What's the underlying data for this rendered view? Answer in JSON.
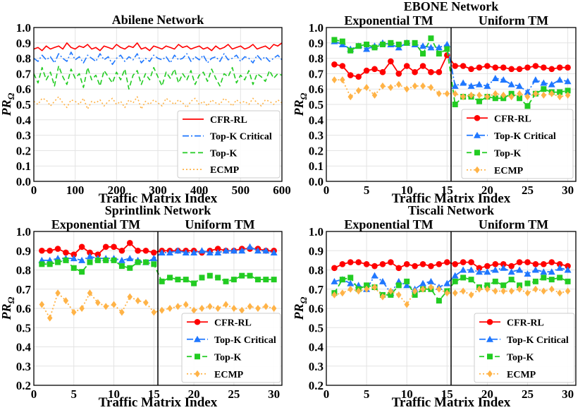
{
  "chart_data": [
    {
      "id": "abilene",
      "type": "line",
      "title": "Abilene Network",
      "supertitle": "",
      "regime_labels": [],
      "xlabel": "Traffic Matrix Index",
      "ylabel": "PR",
      "ylabel_sub": "Ω",
      "xlim": [
        0,
        600
      ],
      "ylim": [
        0.0,
        1.0
      ],
      "xticks": [
        "0",
        "100",
        "200",
        "300",
        "400",
        "500",
        "600"
      ],
      "yticks": [
        "0.0",
        "0.1",
        "0.2",
        "0.3",
        "0.4",
        "0.5",
        "0.6",
        "0.7",
        "0.8",
        "0.9",
        "1.0"
      ],
      "divider_x": null,
      "x": [
        0,
        10,
        20,
        30,
        40,
        50,
        60,
        70,
        80,
        90,
        100,
        110,
        120,
        130,
        140,
        150,
        160,
        170,
        180,
        190,
        200,
        210,
        220,
        230,
        240,
        250,
        260,
        270,
        280,
        290,
        300,
        310,
        320,
        330,
        340,
        350,
        360,
        370,
        380,
        390,
        400,
        410,
        420,
        430,
        440,
        450,
        460,
        470,
        480,
        490,
        500,
        510,
        520,
        530,
        540,
        550,
        560,
        570,
        580,
        590,
        600
      ],
      "series": [
        {
          "name": "CFR-RL",
          "color": "#ff0000",
          "style": "solid",
          "marker": "none",
          "values": [
            0.86,
            0.87,
            0.85,
            0.88,
            0.86,
            0.87,
            0.88,
            0.86,
            0.9,
            0.87,
            0.86,
            0.88,
            0.87,
            0.89,
            0.86,
            0.87,
            0.85,
            0.88,
            0.87,
            0.86,
            0.89,
            0.87,
            0.86,
            0.88,
            0.87,
            0.9,
            0.86,
            0.87,
            0.85,
            0.88,
            0.87,
            0.86,
            0.88,
            0.87,
            0.86,
            0.89,
            0.87,
            0.88,
            0.86,
            0.87,
            0.88,
            0.86,
            0.87,
            0.85,
            0.88,
            0.86,
            0.87,
            0.89,
            0.86,
            0.87,
            0.88,
            0.86,
            0.87,
            0.89,
            0.86,
            0.87,
            0.88,
            0.86,
            0.89,
            0.88,
            0.9
          ]
        },
        {
          "name": "Top-K Critical",
          "color": "#1f77ff",
          "style": "dashdot",
          "marker": "none",
          "values": [
            0.8,
            0.78,
            0.82,
            0.79,
            0.81,
            0.77,
            0.83,
            0.8,
            0.78,
            0.84,
            0.79,
            0.81,
            0.77,
            0.82,
            0.8,
            0.78,
            0.83,
            0.79,
            0.81,
            0.76,
            0.8,
            0.82,
            0.78,
            0.81,
            0.79,
            0.83,
            0.77,
            0.8,
            0.78,
            0.82,
            0.8,
            0.79,
            0.81,
            0.77,
            0.82,
            0.79,
            0.8,
            0.83,
            0.78,
            0.81,
            0.79,
            0.82,
            0.77,
            0.8,
            0.81,
            0.78,
            0.83,
            0.79,
            0.8,
            0.82,
            0.78,
            0.81,
            0.8,
            0.77,
            0.82,
            0.79,
            0.81,
            0.78,
            0.8,
            0.82,
            0.79
          ]
        },
        {
          "name": "Top-K",
          "color": "#22cc22",
          "style": "dashed",
          "marker": "none",
          "values": [
            0.7,
            0.64,
            0.74,
            0.66,
            0.71,
            0.62,
            0.75,
            0.68,
            0.63,
            0.73,
            0.67,
            0.7,
            0.61,
            0.74,
            0.66,
            0.69,
            0.62,
            0.72,
            0.68,
            0.64,
            0.71,
            0.66,
            0.73,
            0.6,
            0.69,
            0.72,
            0.63,
            0.7,
            0.66,
            0.74,
            0.68,
            0.62,
            0.71,
            0.67,
            0.73,
            0.64,
            0.7,
            0.66,
            0.72,
            0.63,
            0.69,
            0.71,
            0.65,
            0.73,
            0.67,
            0.62,
            0.7,
            0.68,
            0.74,
            0.64,
            0.69,
            0.66,
            0.72,
            0.63,
            0.7,
            0.68,
            0.65,
            0.72,
            0.67,
            0.7,
            0.69
          ]
        },
        {
          "name": "ECMP",
          "color": "#ffb347",
          "style": "dotted",
          "marker": "none",
          "values": [
            0.52,
            0.5,
            0.54,
            0.53,
            0.49,
            0.52,
            0.55,
            0.51,
            0.48,
            0.53,
            0.52,
            0.5,
            0.54,
            0.47,
            0.52,
            0.51,
            0.53,
            0.49,
            0.52,
            0.54,
            0.5,
            0.52,
            0.48,
            0.53,
            0.51,
            0.55,
            0.47,
            0.52,
            0.5,
            0.53,
            0.51,
            0.49,
            0.54,
            0.52,
            0.5,
            0.53,
            0.51,
            0.48,
            0.52,
            0.54,
            0.5,
            0.52,
            0.49,
            0.53,
            0.51,
            0.5,
            0.54,
            0.52,
            0.49,
            0.53,
            0.51,
            0.52,
            0.5,
            0.54,
            0.51,
            0.49,
            0.53,
            0.52,
            0.5,
            0.53,
            0.51
          ]
        }
      ]
    },
    {
      "id": "ebone",
      "type": "line",
      "title": "",
      "supertitle": "EBONE Network",
      "regime_labels": [
        "Exponential TM",
        "Uniform TM"
      ],
      "xlabel": "Traffic Matrix Index",
      "ylabel": "PR",
      "ylabel_sub": "Ω",
      "xlim": [
        0,
        31
      ],
      "ylim": [
        0.0,
        1.0
      ],
      "xticks": [
        "0",
        "5",
        "10",
        "15",
        "20",
        "25",
        "30"
      ],
      "yticks": [
        "0.0",
        "0.1",
        "0.2",
        "0.3",
        "0.4",
        "0.5",
        "0.6",
        "0.7",
        "0.8",
        "0.9",
        "1.0"
      ],
      "divider_x": 15.5,
      "x": [
        1,
        2,
        3,
        4,
        5,
        6,
        7,
        8,
        9,
        10,
        11,
        12,
        13,
        14,
        15,
        16,
        17,
        18,
        19,
        20,
        21,
        22,
        23,
        24,
        25,
        26,
        27,
        28,
        29,
        30
      ],
      "series": [
        {
          "name": "CFR-RL",
          "color": "#ff0000",
          "style": "solid",
          "marker": "circle",
          "values": [
            0.76,
            0.75,
            0.69,
            0.68,
            0.72,
            0.73,
            0.71,
            0.78,
            0.7,
            0.75,
            0.71,
            0.75,
            0.71,
            0.71,
            0.82,
            0.75,
            0.75,
            0.73,
            0.74,
            0.75,
            0.74,
            0.74,
            0.73,
            0.73,
            0.74,
            0.75,
            0.74,
            0.73,
            0.74,
            0.74
          ]
        },
        {
          "name": "Top-K Critical",
          "color": "#1f77ff",
          "style": "dashdot",
          "marker": "triangle",
          "values": [
            0.91,
            0.89,
            0.86,
            0.88,
            0.86,
            0.88,
            0.9,
            0.89,
            0.87,
            0.9,
            0.89,
            0.88,
            0.87,
            0.87,
            0.89,
            0.62,
            0.64,
            0.62,
            0.63,
            0.62,
            0.67,
            0.66,
            0.63,
            0.62,
            0.58,
            0.66,
            0.64,
            0.63,
            0.66,
            0.65
          ]
        },
        {
          "name": "Top-K",
          "color": "#22cc22",
          "style": "dashed",
          "marker": "square",
          "values": [
            0.92,
            0.91,
            0.85,
            0.88,
            0.89,
            0.87,
            0.89,
            0.9,
            0.89,
            0.9,
            0.9,
            0.83,
            0.93,
            0.83,
            0.86,
            0.5,
            0.55,
            0.55,
            0.52,
            0.55,
            0.54,
            0.54,
            0.57,
            0.54,
            0.49,
            0.57,
            0.6,
            0.58,
            0.58,
            0.59
          ]
        },
        {
          "name": "ECMP",
          "color": "#ffb347",
          "style": "dotted",
          "marker": "diamond",
          "values": [
            0.66,
            0.66,
            0.55,
            0.59,
            0.61,
            0.56,
            0.62,
            0.61,
            0.63,
            0.6,
            0.62,
            0.62,
            0.61,
            0.57,
            0.57,
            0.57,
            0.55,
            0.56,
            0.56,
            0.55,
            0.57,
            0.56,
            0.55,
            0.57,
            0.55,
            0.57,
            0.56,
            0.57,
            0.55,
            0.56
          ]
        }
      ]
    },
    {
      "id": "sprintlink",
      "type": "line",
      "title": "",
      "supertitle": "Sprintlink Network",
      "regime_labels": [
        "Exponential TM",
        "Uniform TM"
      ],
      "xlabel": "Traffic Matrix Index",
      "ylabel": "PR",
      "ylabel_sub": "Ω",
      "xlim": [
        0,
        31
      ],
      "ylim": [
        0.2,
        1.0
      ],
      "xticks": [
        "0",
        "5",
        "10",
        "15",
        "20",
        "25",
        "30"
      ],
      "yticks": [
        "0.2",
        "0.3",
        "0.4",
        "0.5",
        "0.6",
        "0.7",
        "0.8",
        "0.9",
        "1.0"
      ],
      "divider_x": 15.5,
      "x": [
        1,
        2,
        3,
        4,
        5,
        6,
        7,
        8,
        9,
        10,
        11,
        12,
        13,
        14,
        15,
        16,
        17,
        18,
        19,
        20,
        21,
        22,
        23,
        24,
        25,
        26,
        27,
        28,
        29,
        30
      ],
      "series": [
        {
          "name": "CFR-RL",
          "color": "#ff0000",
          "style": "solid",
          "marker": "circle",
          "values": [
            0.9,
            0.9,
            0.91,
            0.89,
            0.88,
            0.92,
            0.89,
            0.88,
            0.92,
            0.92,
            0.9,
            0.94,
            0.9,
            0.9,
            0.89,
            0.9,
            0.9,
            0.9,
            0.9,
            0.9,
            0.89,
            0.9,
            0.91,
            0.9,
            0.9,
            0.91,
            0.91,
            0.91,
            0.9,
            0.9
          ]
        },
        {
          "name": "Top-K Critical",
          "color": "#1f77ff",
          "style": "dashdot",
          "marker": "triangle",
          "values": [
            0.85,
            0.85,
            0.86,
            0.86,
            0.86,
            0.85,
            0.87,
            0.86,
            0.86,
            0.86,
            0.85,
            0.86,
            0.85,
            0.84,
            0.86,
            0.89,
            0.89,
            0.9,
            0.89,
            0.89,
            0.9,
            0.89,
            0.89,
            0.9,
            0.9,
            0.9,
            0.92,
            0.9,
            0.9,
            0.89
          ]
        },
        {
          "name": "Top-K",
          "color": "#22cc22",
          "style": "dashed",
          "marker": "square",
          "values": [
            0.83,
            0.83,
            0.84,
            0.85,
            0.81,
            0.79,
            0.84,
            0.85,
            0.85,
            0.85,
            0.82,
            0.81,
            0.84,
            0.84,
            0.83,
            0.74,
            0.76,
            0.75,
            0.75,
            0.73,
            0.76,
            0.77,
            0.76,
            0.74,
            0.75,
            0.77,
            0.77,
            0.75,
            0.75,
            0.75
          ]
        },
        {
          "name": "ECMP",
          "color": "#ffb347",
          "style": "dotted",
          "marker": "diamond",
          "values": [
            0.62,
            0.55,
            0.68,
            0.64,
            0.58,
            0.6,
            0.68,
            0.63,
            0.61,
            0.62,
            0.58,
            0.66,
            0.64,
            0.63,
            0.58,
            0.59,
            0.6,
            0.61,
            0.62,
            0.59,
            0.6,
            0.61,
            0.6,
            0.62,
            0.6,
            0.59,
            0.61,
            0.6,
            0.61,
            0.6
          ]
        }
      ]
    },
    {
      "id": "tiscali",
      "type": "line",
      "title": "",
      "supertitle": "Tiscali Network",
      "regime_labels": [
        "Exponential TM",
        "Uniform TM"
      ],
      "xlabel": "Traffic Matrix Index",
      "ylabel": "PR",
      "ylabel_sub": "Ω",
      "xlim": [
        0,
        31
      ],
      "ylim": [
        0.2,
        1.0
      ],
      "xticks": [
        "0",
        "5",
        "10",
        "15",
        "20",
        "25",
        "30"
      ],
      "yticks": [
        "0.2",
        "0.3",
        "0.4",
        "0.5",
        "0.6",
        "0.7",
        "0.8",
        "0.9",
        "1.0"
      ],
      "divider_x": 15.5,
      "x": [
        1,
        2,
        3,
        4,
        5,
        6,
        7,
        8,
        9,
        10,
        11,
        12,
        13,
        14,
        15,
        16,
        17,
        18,
        19,
        20,
        21,
        22,
        23,
        24,
        25,
        26,
        27,
        28,
        29,
        30
      ],
      "series": [
        {
          "name": "CFR-RL",
          "color": "#ff0000",
          "style": "solid",
          "marker": "circle",
          "values": [
            0.81,
            0.83,
            0.84,
            0.84,
            0.83,
            0.82,
            0.83,
            0.84,
            0.81,
            0.83,
            0.82,
            0.83,
            0.82,
            0.83,
            0.84,
            0.83,
            0.84,
            0.84,
            0.81,
            0.82,
            0.83,
            0.83,
            0.82,
            0.84,
            0.84,
            0.83,
            0.83,
            0.84,
            0.83,
            0.82
          ]
        },
        {
          "name": "Top-K Critical",
          "color": "#1f77ff",
          "style": "dashdot",
          "marker": "triangle",
          "values": [
            0.74,
            0.75,
            0.73,
            0.72,
            0.7,
            0.77,
            0.74,
            0.68,
            0.74,
            0.72,
            0.7,
            0.73,
            0.74,
            0.71,
            0.73,
            0.77,
            0.8,
            0.8,
            0.79,
            0.79,
            0.8,
            0.81,
            0.79,
            0.8,
            0.78,
            0.8,
            0.79,
            0.79,
            0.81,
            0.8
          ]
        },
        {
          "name": "Top-K",
          "color": "#22cc22",
          "style": "dashed",
          "marker": "square",
          "values": [
            0.68,
            0.75,
            0.76,
            0.7,
            0.72,
            0.71,
            0.67,
            0.67,
            0.72,
            0.74,
            0.67,
            0.7,
            0.7,
            0.64,
            0.69,
            0.74,
            0.76,
            0.75,
            0.71,
            0.72,
            0.74,
            0.72,
            0.75,
            0.72,
            0.73,
            0.74,
            0.76,
            0.75,
            0.76,
            0.74
          ]
        },
        {
          "name": "ECMP",
          "color": "#ffb347",
          "style": "dotted",
          "marker": "diamond",
          "values": [
            0.67,
            0.68,
            0.7,
            0.69,
            0.7,
            0.71,
            0.66,
            0.69,
            0.67,
            0.62,
            0.69,
            0.7,
            0.71,
            0.7,
            0.68,
            0.68,
            0.69,
            0.67,
            0.7,
            0.7,
            0.69,
            0.69,
            0.69,
            0.7,
            0.68,
            0.7,
            0.69,
            0.7,
            0.68,
            0.69
          ]
        }
      ]
    }
  ]
}
